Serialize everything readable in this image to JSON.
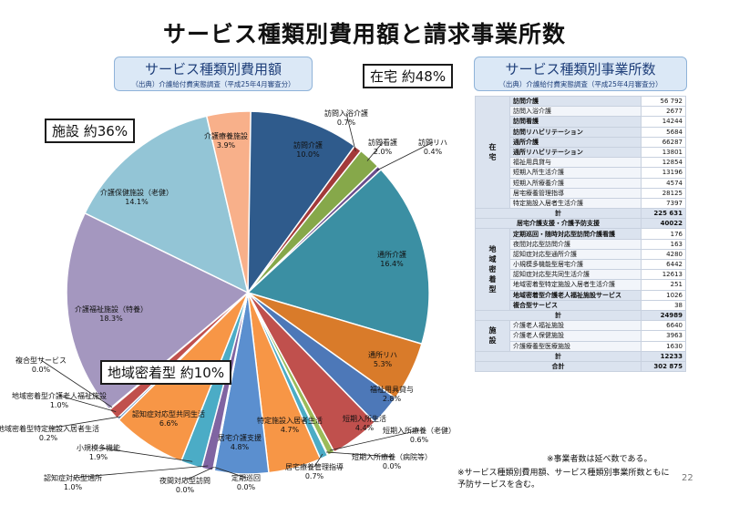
{
  "title": "サービス種類別費用額と請求事業所数",
  "left_header": {
    "main": "サービス種類別費用額",
    "sub": "（出典）介護給付費実態調査（平成25年4月審査分）"
  },
  "right_header": {
    "main": "サービス種類別事業所数",
    "sub": "（出典）介護給付費実態調査（平成25年4月審査分）"
  },
  "callouts": {
    "home": "在宅 約48%",
    "facility": "施設 約36%",
    "community": "地域密着型 約10%"
  },
  "chart_data": {
    "type": "pie",
    "unit": "%",
    "slices": [
      {
        "name": "訪問介護",
        "value": 10.0,
        "label": "10.0%",
        "color": "#2f5b8c"
      },
      {
        "name": "訪問入浴介護",
        "value": 0.7,
        "label": "0.7%",
        "color": "#a33a3a"
      },
      {
        "name": "訪問看護",
        "value": 2.0,
        "label": "2.0%",
        "color": "#86a84a"
      },
      {
        "name": "訪問リハ",
        "value": 0.4,
        "label": "0.4%",
        "color": "#6a4d8d"
      },
      {
        "name": "通所介護",
        "value": 16.4,
        "label": "16.4%",
        "color": "#3b8fa3"
      },
      {
        "name": "通所リハ",
        "value": 5.3,
        "label": "5.3%",
        "color": "#d97b2a"
      },
      {
        "name": "福祉用具貸与",
        "value": 2.8,
        "label": "2.8%",
        "color": "#4d78b8"
      },
      {
        "name": "短期入所生活",
        "value": 4.4,
        "label": "4.4%",
        "color": "#c0504d"
      },
      {
        "name": "短期入所療養（老健）",
        "value": 0.6,
        "label": "0.6%",
        "color": "#9bbb59"
      },
      {
        "name": "短期入所療養（病院等）",
        "value": 0.0,
        "label": "0.0%",
        "color": "#8064a2"
      },
      {
        "name": "居宅療養管理指導",
        "value": 0.7,
        "label": "0.7%",
        "color": "#4bacc6"
      },
      {
        "name": "特定施設入居者生活",
        "value": 4.7,
        "label": "4.7%",
        "color": "#f79646"
      },
      {
        "name": "居宅介護支援",
        "value": 4.8,
        "label": "4.8%",
        "color": "#5b8fcf"
      },
      {
        "name": "定期巡回",
        "value": 0.0,
        "label": "0.0%",
        "color": "#c0504d"
      },
      {
        "name": "夜間対応型訪問",
        "value": 0.0,
        "label": "0.0%",
        "color": "#9bbb59"
      },
      {
        "name": "認知症対応型通所",
        "value": 1.0,
        "label": "1.0%",
        "color": "#8064a2"
      },
      {
        "name": "小規模多機能",
        "value": 1.9,
        "label": "1.9%",
        "color": "#4bacc6"
      },
      {
        "name": "認知症対応型共同生活",
        "value": 6.6,
        "label": "6.6%",
        "color": "#f79646"
      },
      {
        "name": "地域密着型特定施設入居者生活",
        "value": 0.2,
        "label": "0.2%",
        "color": "#4f81bd"
      },
      {
        "name": "地域密着型介護老人福祉施設",
        "value": 1.0,
        "label": "1.0%",
        "color": "#c0504d"
      },
      {
        "name": "複合型サービス",
        "value": 0.0,
        "label": "0.0%",
        "color": "#9bbb59"
      },
      {
        "name": "介護福祉施設（特養）",
        "value": 18.3,
        "label": "18.3%",
        "color": "#a497bf"
      },
      {
        "name": "介護保健施設（老健）",
        "value": 14.1,
        "label": "14.1%",
        "color": "#93c5d6"
      },
      {
        "name": "介護療養施設",
        "value": 3.9,
        "label": "3.9%",
        "color": "#f8b08a"
      }
    ]
  },
  "table": {
    "groups": [
      {
        "name": "在宅",
        "rows": [
          {
            "name": "訪問介護",
            "value": "56 792",
            "bold": true
          },
          {
            "name": "訪問入浴介護",
            "value": "2677",
            "bold": false
          },
          {
            "name": "訪問看護",
            "value": "14244",
            "bold": true
          },
          {
            "name": "訪問リハビリテーション",
            "value": "5684",
            "bold": true
          },
          {
            "name": "通所介護",
            "value": "66287",
            "bold": true
          },
          {
            "name": "通所リハビリテーション",
            "value": "13801",
            "bold": true
          },
          {
            "name": "福祉用具貸与",
            "value": "12854",
            "bold": false
          },
          {
            "name": "短期入所生活介護",
            "value": "13196",
            "bold": false
          },
          {
            "name": "短期入所療養介護",
            "value": "4574",
            "bold": false
          },
          {
            "name": "居宅療養管理指導",
            "value": "28125",
            "bold": false
          },
          {
            "name": "特定施設入居者生活介護",
            "value": "7397",
            "bold": false
          }
        ],
        "total_label": "計",
        "total": "225 631"
      },
      {
        "name": "居宅介護支援・介護予防支援",
        "value": "40022"
      },
      {
        "name": "地域密着型",
        "rows": [
          {
            "name": "定期巡回・随時対応型訪問介護看護",
            "value": "176",
            "bold": true
          },
          {
            "name": "夜間対応型訪問介護",
            "value": "163",
            "bold": false
          },
          {
            "name": "認知症対応型通所介護",
            "value": "4280",
            "bold": false
          },
          {
            "name": "小規模多機能型居宅介護",
            "value": "6442",
            "bold": false
          },
          {
            "name": "認知症対応型共同生活介護",
            "value": "12613",
            "bold": false
          },
          {
            "name": "地域密着型特定施設入居者生活介護",
            "value": "251",
            "bold": false
          },
          {
            "name": "地域密着型介護老人福祉施設サービス",
            "value": "1026",
            "bold": true
          },
          {
            "name": "複合型サービス",
            "value": "38",
            "bold": true
          }
        ],
        "total_label": "計",
        "total": "24989"
      },
      {
        "name": "施設",
        "rows": [
          {
            "name": "介護老人福祉施設",
            "value": "6640",
            "bold": false
          },
          {
            "name": "介護老人保健施設",
            "value": "3963",
            "bold": false
          },
          {
            "name": "介護療養型医療施設",
            "value": "1630",
            "bold": false
          }
        ],
        "total_label": "計",
        "total": "12233"
      }
    ],
    "grand_total_label": "合計",
    "grand_total": "302 875"
  },
  "notes": {
    "n1": "※事業者数は延べ数である。",
    "n2a": "※サービス種類別費用額、サービス種類別事業所数ともに",
    "n2b": "予防サービスを含む。"
  },
  "page_number": "22"
}
